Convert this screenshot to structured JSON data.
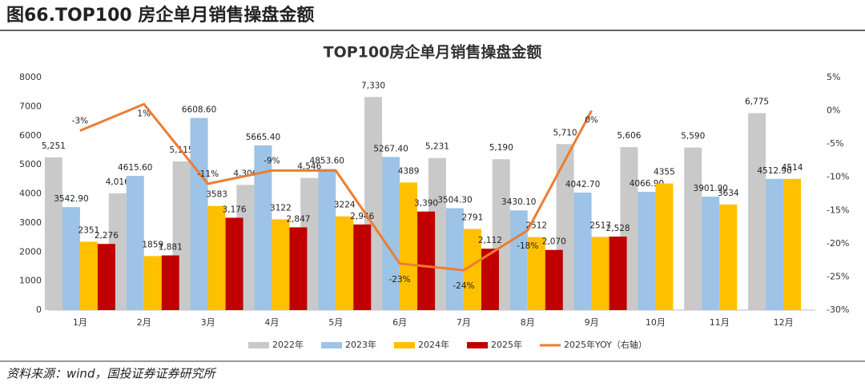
{
  "header": {
    "title": "图66.TOP100 房企单月销售操盘金额"
  },
  "source": "资料来源：wind，国投证券证券研究所",
  "chart_data": {
    "type": "bar",
    "title": "TOP100房企单月销售操盘金额",
    "categories": [
      "1月",
      "2月",
      "3月",
      "4月",
      "5月",
      "6月",
      "7月",
      "8月",
      "9月",
      "10月",
      "11月",
      "12月"
    ],
    "series": [
      {
        "name": "2022年",
        "color": "#c9c9c9",
        "values": [
          5251,
          4016,
          5115,
          4306,
          4546,
          7330,
          5231,
          5190,
          5710,
          5606,
          5590,
          6775
        ],
        "value_labels": [
          "5,251",
          "4,016",
          "5,115",
          "4,306",
          "4,546",
          "7,330",
          "5,231",
          "5,190",
          "5,710",
          "5,606",
          "5,590",
          "6,775"
        ]
      },
      {
        "name": "2023年",
        "color": "#9dc3e6",
        "values": [
          3542.9,
          4615.6,
          6608.6,
          5665.4,
          4853.6,
          5267.4,
          3504.3,
          3430.1,
          4042.7,
          4066.9,
          3901.9,
          4512.9
        ],
        "value_labels": [
          "3542.90",
          "4615.60",
          "6608.60",
          "5665.40",
          "4853.60",
          "5267.40",
          "3504.30",
          "3430.10",
          "4042.70",
          "4066.90",
          "3901.90",
          "4512.90"
        ]
      },
      {
        "name": "2024年",
        "color": "#ffc000",
        "values": [
          2351,
          1859,
          3583,
          3122,
          3224,
          4389,
          2791,
          2512,
          2517,
          4355,
          3634,
          4514
        ]
      },
      {
        "name": "2025年",
        "color": "#c00000",
        "values": [
          2276,
          1881,
          3176,
          2847,
          2946,
          3390,
          2112,
          2070,
          2528,
          null,
          null,
          null
        ],
        "value_labels": [
          "2,276",
          "1,881",
          "3,176",
          "2,847",
          "2,946",
          "3,390",
          "2,112",
          "2,070",
          "2,528",
          null,
          null,
          null
        ]
      },
      {
        "name": "2025年YOY（右轴）",
        "color": "#ed7d31",
        "type": "line",
        "axis": "y2",
        "values": [
          -3,
          1,
          -11,
          -9,
          -9,
          -23,
          -24,
          -18,
          0,
          null,
          null,
          null
        ],
        "value_labels": [
          "-3%",
          "1%",
          "-11%",
          "-9%",
          null,
          "-23%",
          "-24%",
          "-18%",
          "0%",
          null,
          null,
          null
        ]
      }
    ],
    "ylim": [
      0,
      8000
    ],
    "yticks": [
      0,
      1000,
      2000,
      3000,
      4000,
      5000,
      6000,
      7000,
      8000
    ],
    "y2lim": [
      -30,
      5
    ],
    "y2ticks": [
      {
        "value": -30,
        "label": "-30%"
      },
      {
        "value": -25,
        "label": "-25%"
      },
      {
        "value": -20,
        "label": "-20%"
      },
      {
        "value": -15,
        "label": "-15%"
      },
      {
        "value": -10,
        "label": "-10%"
      },
      {
        "value": -5,
        "label": "-5%"
      },
      {
        "value": 0,
        "label": "0%"
      },
      {
        "value": 5,
        "label": "5%"
      }
    ],
    "legend": "bottom"
  }
}
